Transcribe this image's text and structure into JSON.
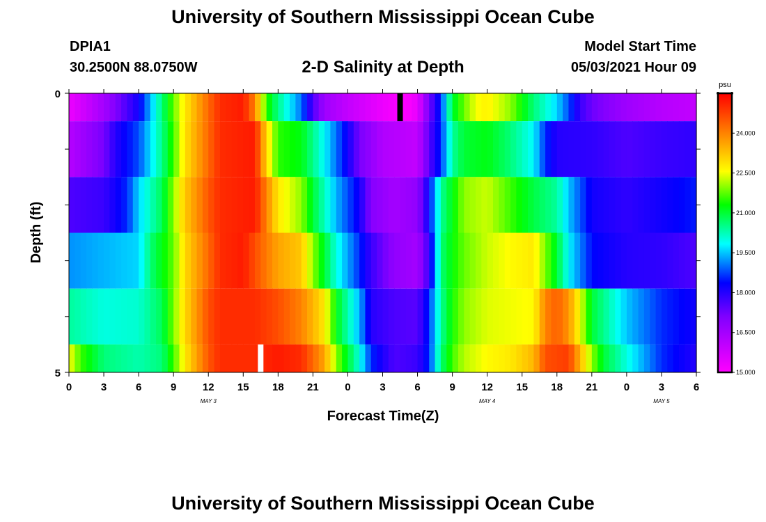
{
  "header": {
    "title": "University of Southern Mississippi Ocean Cube",
    "station_id": "DPIA1",
    "coordinates": "30.2500N  88.0750W",
    "plot_title": "2-D Salinity at Depth",
    "model_start_label": "Model Start Time",
    "model_start_value": "05/03/2021 Hour 09"
  },
  "footer": {
    "title": "University of Southern Mississippi Ocean Cube"
  },
  "chart_data": {
    "type": "heatmap",
    "title": "2-D Salinity at Depth",
    "xlabel": "Forecast Time(Z)",
    "ylabel": "Depth (ft)",
    "x_start_hour": 0,
    "x_end_hour": 54,
    "x_ticks": [
      {
        "hour": 0,
        "label": "0"
      },
      {
        "hour": 3,
        "label": "3"
      },
      {
        "hour": 6,
        "label": "6"
      },
      {
        "hour": 9,
        "label": "9"
      },
      {
        "hour": 12,
        "label": "12"
      },
      {
        "hour": 15,
        "label": "15"
      },
      {
        "hour": 18,
        "label": "18"
      },
      {
        "hour": 21,
        "label": "21"
      },
      {
        "hour": 24,
        "label": "0"
      },
      {
        "hour": 27,
        "label": "3"
      },
      {
        "hour": 30,
        "label": "6"
      },
      {
        "hour": 33,
        "label": "9"
      },
      {
        "hour": 36,
        "label": "12"
      },
      {
        "hour": 39,
        "label": "15"
      },
      {
        "hour": 42,
        "label": "18"
      },
      {
        "hour": 45,
        "label": "21"
      },
      {
        "hour": 48,
        "label": "0"
      },
      {
        "hour": 51,
        "label": "3"
      },
      {
        "hour": 54,
        "label": "6"
      }
    ],
    "date_labels": [
      {
        "hour": 12,
        "label": "MAY 3"
      },
      {
        "hour": 36,
        "label": "MAY 4"
      },
      {
        "hour": 51,
        "label": "MAY 5"
      }
    ],
    "y_ticks": [
      {
        "depth": 0,
        "label": "0"
      },
      {
        "depth": 5,
        "label": "5"
      }
    ],
    "ylim": [
      0,
      5
    ],
    "colorbar": {
      "unit": "psu",
      "min": 15.0,
      "max": 25.5,
      "labels": [
        "15.000",
        "16.500",
        "18.000",
        "19.500",
        "21.000",
        "22.500",
        "24.000"
      ]
    },
    "depth_layers": [
      {
        "depth_top": 0.0,
        "depth_bottom": 0.5,
        "salinity": [
          [
            0,
            15.3
          ],
          [
            3,
            16.5
          ],
          [
            6,
            18.2
          ],
          [
            8,
            20.6
          ],
          [
            9,
            21.8
          ],
          [
            10,
            22.8
          ],
          [
            12,
            24.3
          ],
          [
            13,
            25.0
          ],
          [
            15,
            25.2
          ],
          [
            16,
            24.0
          ],
          [
            17,
            21.5
          ],
          [
            18,
            20.5
          ],
          [
            20,
            19.0
          ],
          [
            21,
            17.6
          ],
          [
            22,
            16.6
          ],
          [
            24,
            16.0
          ],
          [
            27,
            15.3
          ],
          [
            29,
            15.0
          ],
          [
            30,
            15.4
          ],
          [
            31,
            17.2
          ],
          [
            32,
            18.6
          ],
          [
            33,
            21.0
          ],
          [
            34,
            21.8
          ],
          [
            35,
            22.5
          ],
          [
            36,
            22.7
          ],
          [
            38,
            22.0
          ],
          [
            40,
            20.6
          ],
          [
            42,
            19.6
          ],
          [
            43,
            18.8
          ],
          [
            44,
            17.8
          ],
          [
            45,
            17.3
          ],
          [
            48,
            16.6
          ],
          [
            51,
            16.2
          ],
          [
            54,
            16.0
          ]
        ]
      },
      {
        "depth_top": 0.5,
        "depth_bottom": 1.5,
        "salinity": [
          [
            0,
            16.2
          ],
          [
            3,
            17.2
          ],
          [
            4,
            18.0
          ],
          [
            6,
            18.8
          ],
          [
            8,
            20.5
          ],
          [
            9,
            21.6
          ],
          [
            10,
            22.9
          ],
          [
            12,
            24.3
          ],
          [
            13,
            25.0
          ],
          [
            16,
            25.2
          ],
          [
            17,
            23.0
          ],
          [
            18,
            21.5
          ],
          [
            20,
            21.2
          ],
          [
            22,
            19.8
          ],
          [
            24,
            18.2
          ],
          [
            25,
            17.2
          ],
          [
            27,
            16.3
          ],
          [
            30,
            16.0
          ],
          [
            31,
            17.5
          ],
          [
            32,
            18.6
          ],
          [
            33,
            20.4
          ],
          [
            34,
            21.0
          ],
          [
            36,
            21.2
          ],
          [
            38,
            20.6
          ],
          [
            40,
            19.8
          ],
          [
            41,
            18.6
          ],
          [
            42,
            18.0
          ],
          [
            45,
            17.9
          ],
          [
            48,
            17.6
          ],
          [
            51,
            17.8
          ],
          [
            54,
            17.9
          ]
        ]
      },
      {
        "depth_top": 1.5,
        "depth_bottom": 2.5,
        "salinity": [
          [
            0,
            17.6
          ],
          [
            3,
            17.8
          ],
          [
            5,
            18.6
          ],
          [
            6,
            19.6
          ],
          [
            8,
            20.8
          ],
          [
            9,
            22.0
          ],
          [
            10,
            23.2
          ],
          [
            12,
            24.5
          ],
          [
            13,
            25.0
          ],
          [
            16,
            25.2
          ],
          [
            17,
            24.0
          ],
          [
            18,
            22.8
          ],
          [
            20,
            22.0
          ],
          [
            21,
            21.0
          ],
          [
            23,
            19.4
          ],
          [
            25,
            18.2
          ],
          [
            26,
            17.0
          ],
          [
            28,
            16.5
          ],
          [
            30,
            16.8
          ],
          [
            31,
            18.3
          ],
          [
            32,
            20.4
          ],
          [
            33,
            21.2
          ],
          [
            34,
            22.0
          ],
          [
            36,
            22.3
          ],
          [
            38,
            21.6
          ],
          [
            40,
            20.9
          ],
          [
            42,
            20.4
          ],
          [
            43,
            19.5
          ],
          [
            45,
            18.2
          ],
          [
            48,
            17.9
          ],
          [
            51,
            18.2
          ],
          [
            54,
            18.5
          ]
        ]
      },
      {
        "depth_top": 2.5,
        "depth_bottom": 3.5,
        "salinity": [
          [
            0,
            19.2
          ],
          [
            3,
            19.4
          ],
          [
            6,
            19.6
          ],
          [
            7,
            20.6
          ],
          [
            9,
            21.8
          ],
          [
            10,
            23.0
          ],
          [
            12,
            24.3
          ],
          [
            13,
            25.0
          ],
          [
            15,
            25.2
          ],
          [
            16,
            24.6
          ],
          [
            18,
            23.6
          ],
          [
            20,
            23.2
          ],
          [
            21,
            22.0
          ],
          [
            23,
            20.0
          ],
          [
            25,
            18.6
          ],
          [
            26,
            17.8
          ],
          [
            28,
            16.8
          ],
          [
            30,
            16.5
          ],
          [
            31,
            17.8
          ],
          [
            32,
            20.6
          ],
          [
            33,
            21.3
          ],
          [
            34,
            21.8
          ],
          [
            36,
            22.3
          ],
          [
            38,
            22.6
          ],
          [
            40,
            22.8
          ],
          [
            42,
            21.0
          ],
          [
            43,
            19.8
          ],
          [
            45,
            18.4
          ],
          [
            48,
            18.0
          ],
          [
            51,
            17.9
          ],
          [
            54,
            17.6
          ]
        ]
      },
      {
        "depth_top": 3.5,
        "depth_bottom": 4.5,
        "salinity": [
          [
            0,
            20.4
          ],
          [
            3,
            20.0
          ],
          [
            6,
            20.1
          ],
          [
            8,
            20.8
          ],
          [
            9,
            21.9
          ],
          [
            10,
            23.0
          ],
          [
            12,
            24.6
          ],
          [
            13,
            25.0
          ],
          [
            16,
            25.0
          ],
          [
            18,
            24.6
          ],
          [
            20,
            24.0
          ],
          [
            22,
            22.8
          ],
          [
            23,
            21.2
          ],
          [
            25,
            19.4
          ],
          [
            26,
            18.0
          ],
          [
            28,
            17.6
          ],
          [
            30,
            17.5
          ],
          [
            31,
            18.6
          ],
          [
            32,
            20.4
          ],
          [
            33,
            21.4
          ],
          [
            34,
            22.0
          ],
          [
            36,
            22.4
          ],
          [
            40,
            22.6
          ],
          [
            41,
            24.0
          ],
          [
            42,
            24.4
          ],
          [
            43,
            23.8
          ],
          [
            44,
            22.5
          ],
          [
            45,
            21.0
          ],
          [
            47,
            20.0
          ],
          [
            48,
            19.5
          ],
          [
            51,
            18.6
          ],
          [
            54,
            18.2
          ]
        ]
      },
      {
        "depth_top": 4.5,
        "depth_bottom": 5.0,
        "salinity": [
          [
            0,
            22.6
          ],
          [
            1,
            21.6
          ],
          [
            3,
            20.6
          ],
          [
            6,
            20.3
          ],
          [
            8,
            20.6
          ],
          [
            9,
            21.6
          ],
          [
            10,
            22.8
          ],
          [
            12,
            24.5
          ],
          [
            13,
            25.0
          ],
          [
            16,
            25.0
          ],
          [
            18,
            25.2
          ],
          [
            20,
            25.0
          ],
          [
            22,
            23.6
          ],
          [
            23,
            22.0
          ],
          [
            25,
            20.0
          ],
          [
            26,
            18.6
          ],
          [
            28,
            17.6
          ],
          [
            30,
            17.8
          ],
          [
            31,
            18.6
          ],
          [
            32,
            20.6
          ],
          [
            33,
            21.6
          ],
          [
            34,
            22.2
          ],
          [
            36,
            22.6
          ],
          [
            38,
            22.8
          ],
          [
            40,
            23.4
          ],
          [
            41,
            24.6
          ],
          [
            43,
            24.8
          ],
          [
            44,
            23.4
          ],
          [
            45,
            22.0
          ],
          [
            46,
            21.0
          ],
          [
            48,
            20.0
          ],
          [
            51,
            18.6
          ],
          [
            54,
            18.0
          ]
        ]
      }
    ],
    "markers": [
      {
        "color": "#000000",
        "hour": 28.5,
        "depth_top": 0.0,
        "depth_bottom": 0.5
      },
      {
        "color": "#ffffff",
        "hour": 16.5,
        "depth_top": 4.5,
        "depth_bottom": 5.0
      }
    ]
  }
}
